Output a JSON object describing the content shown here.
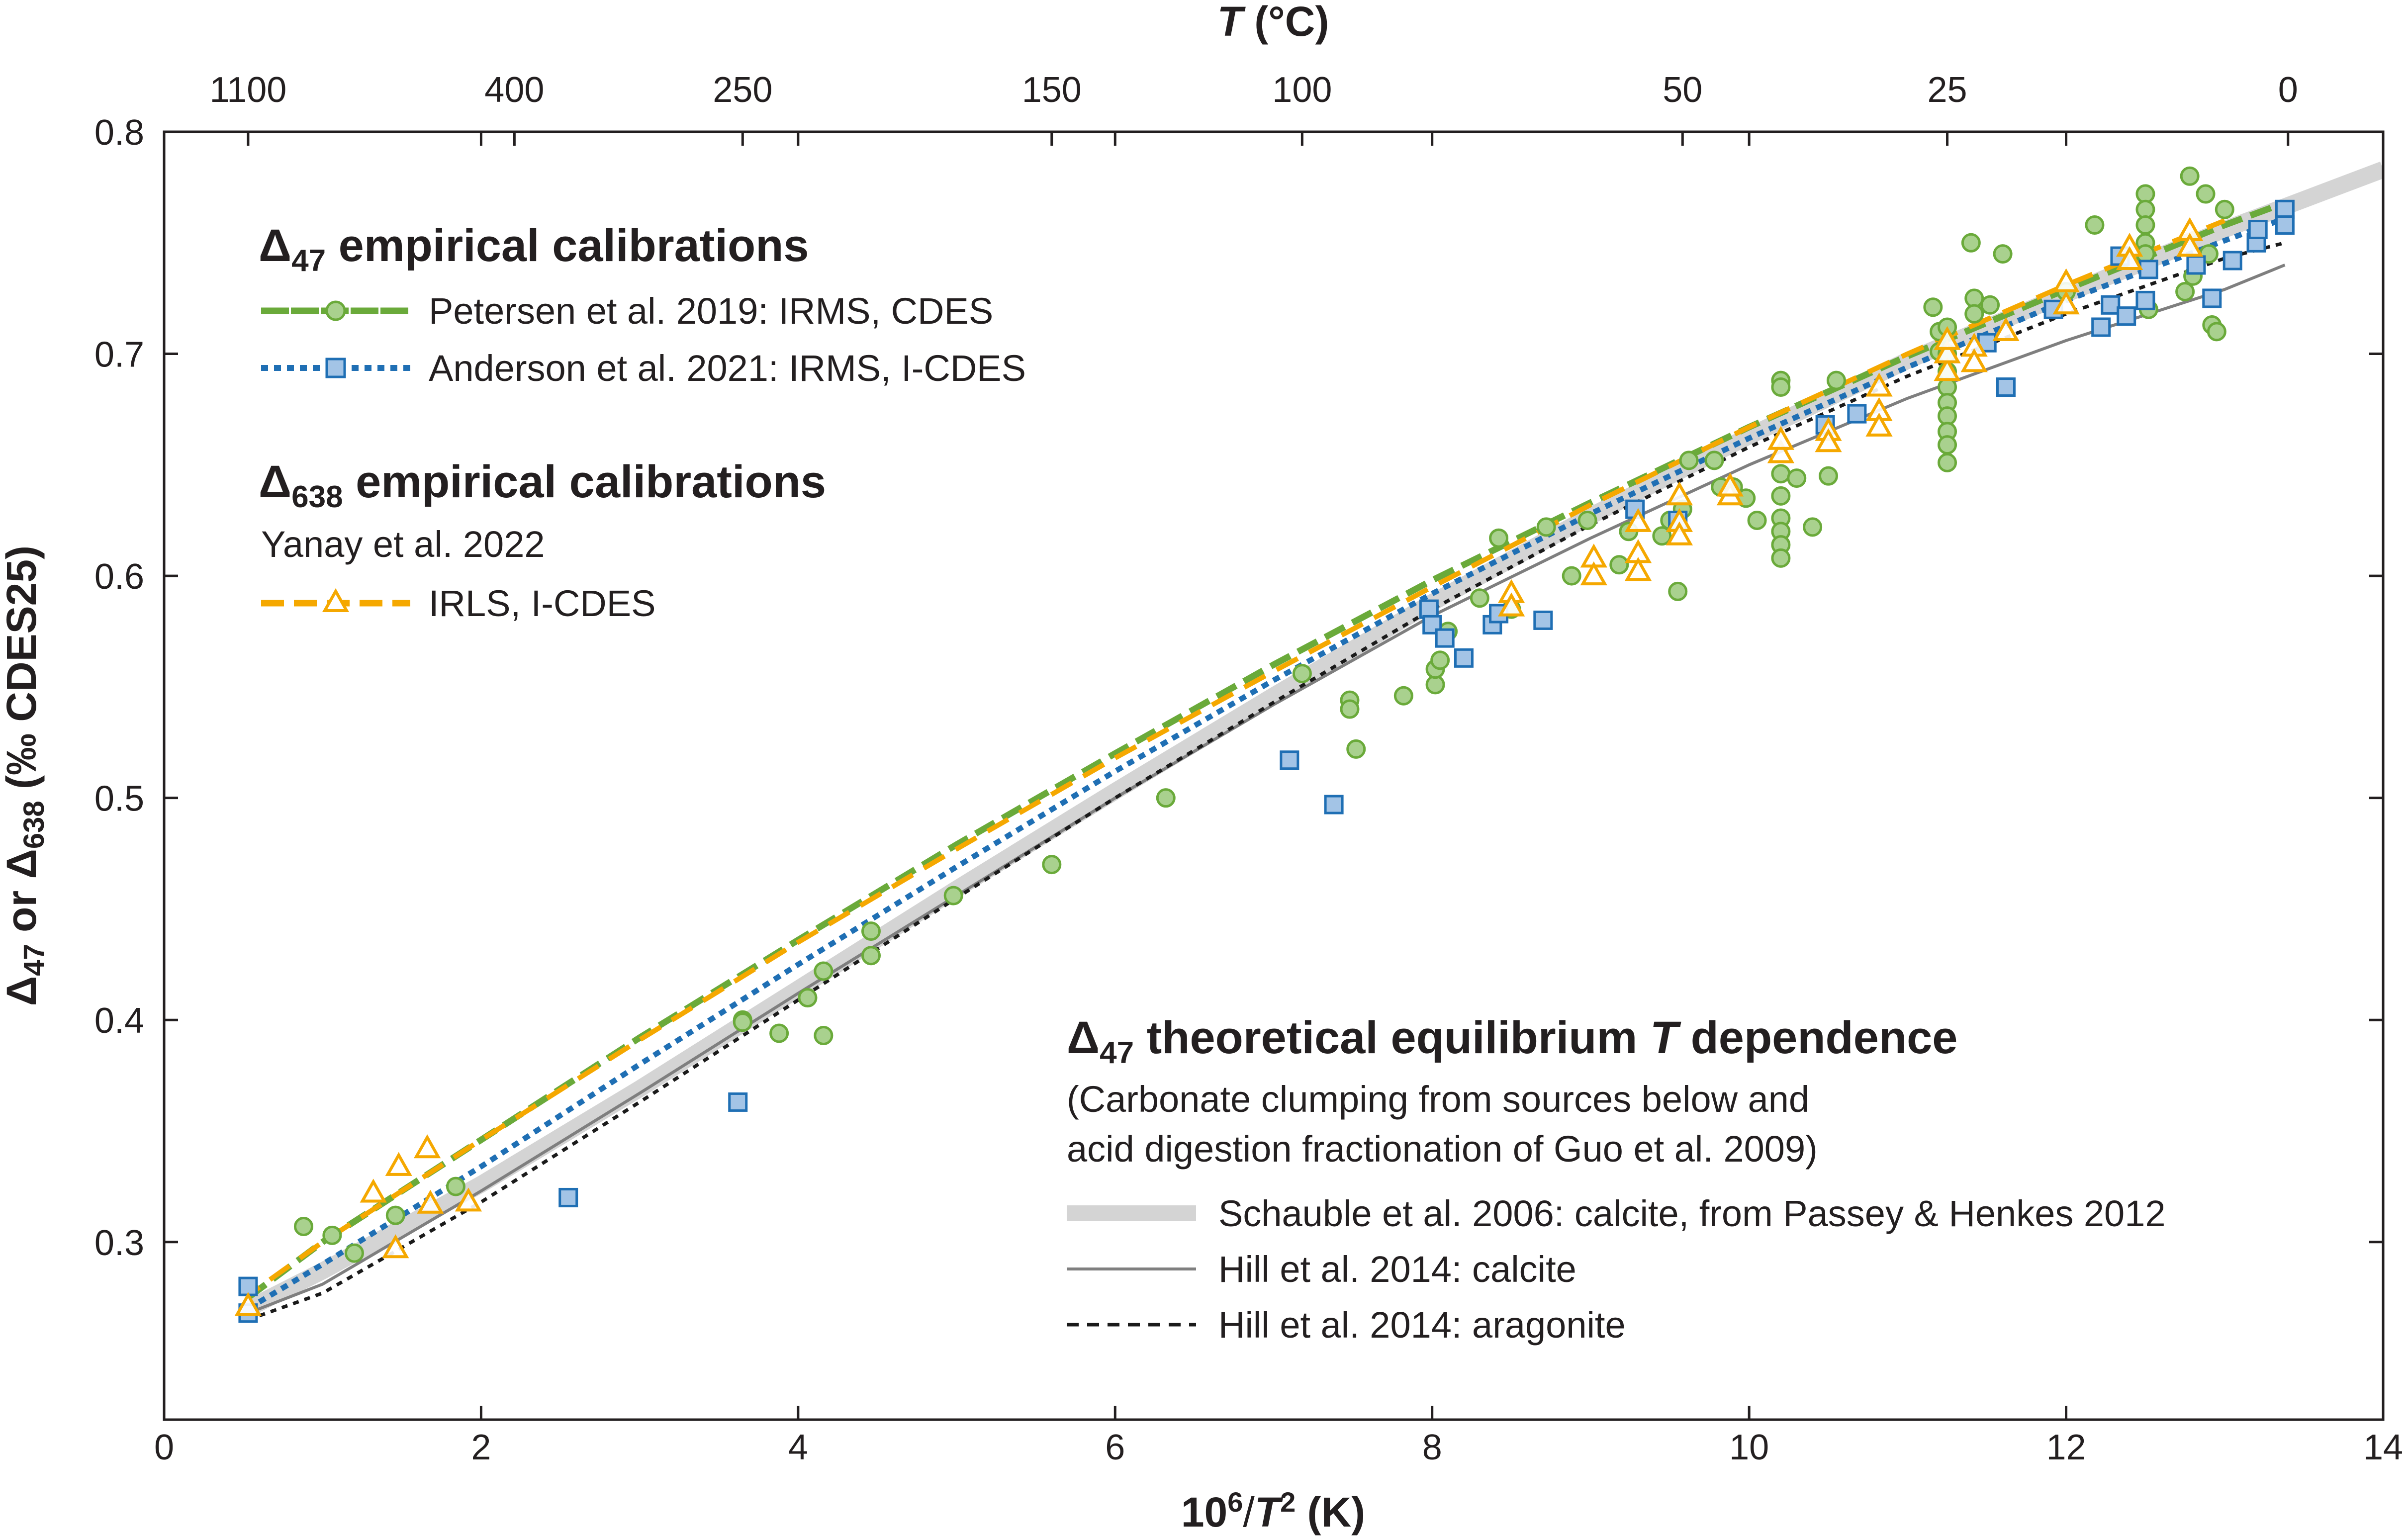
{
  "chart_data": {
    "type": "scatter",
    "title": "",
    "xlabel": "10⁶/T² (K)",
    "xlabel_parts": [
      "10",
      "6",
      "/",
      "T",
      "2",
      " (K)"
    ],
    "ylabel_parts": [
      "Δ",
      "47",
      " or  ",
      "Δ",
      "638",
      " (‰ CDES25)"
    ],
    "top_label_parts": [
      "T",
      " (°C)"
    ],
    "xlim": [
      0,
      14
    ],
    "ylim": [
      0.22,
      0.8
    ],
    "xticks": [
      0,
      2,
      4,
      6,
      8,
      10,
      12,
      14
    ],
    "yticks": [
      0.3,
      0.4,
      0.5,
      0.6,
      0.7,
      0.8
    ],
    "top_ticks": [
      {
        "label": "1100",
        "x": 0.53
      },
      {
        "label": "400",
        "x": 2.21
      },
      {
        "label": "250",
        "x": 3.65
      },
      {
        "label": "150",
        "x": 5.6
      },
      {
        "label": "100",
        "x": 7.18
      },
      {
        "label": "50",
        "x": 9.58
      },
      {
        "label": "25",
        "x": 11.25
      },
      {
        "label": "0",
        "x": 13.4
      }
    ],
    "legend": {
      "empirical_head": {
        "symbol": "Δ",
        "sub": "47",
        "rest": " empirical calibrations"
      },
      "petersen": "Petersen et al. 2019: IRMS, CDES",
      "anderson": "Anderson et al. 2021: IRMS, I-CDES",
      "d638_head": {
        "symbol": "Δ",
        "sub": "638",
        "rest": " empirical calibrations"
      },
      "yanay_ref": "Yanay et al. 2022",
      "yanay": "IRLS, I-CDES",
      "theory_head": {
        "symbol": "Δ",
        "sub": "47",
        "rest_a": " theoretical equilibrium ",
        "italic": "T",
        "rest_b": " dependence"
      },
      "theory_note_1": "(Carbonate clumping from sources below and",
      "theory_note_2": "acid digestion fractionation of Guo et al. 2009)",
      "schauble": "Schauble et al. 2006: calcite, from Passey & Henkes 2012",
      "hill_calcite": "Hill et al. 2014: calcite",
      "hill_aragonite": "Hill et al. 2014: aragonite"
    },
    "colors": {
      "petersen": "#6aaa3a",
      "petersen_fill": "#a9d18e",
      "anderson": "#1f6fb4",
      "anderson_fill": "#a3c4e6",
      "yanay": "#f5a800",
      "yanay_fill": "#ffffff",
      "schauble": "#d4d4d4",
      "hill_calcite": "#7f7f7f",
      "hill_aragonite": "#1a1a1a"
    },
    "series": [
      {
        "name": "Schauble et al. 2006: calcite",
        "kind": "line",
        "style": "thick",
        "x": [
          0.53,
          1,
          2,
          3,
          4,
          5,
          6,
          7,
          8,
          9,
          10,
          11,
          12,
          13,
          14
        ],
        "y": [
          0.27,
          0.287,
          0.326,
          0.369,
          0.414,
          0.459,
          0.503,
          0.546,
          0.588,
          0.627,
          0.663,
          0.697,
          0.727,
          0.756,
          0.783
        ]
      },
      {
        "name": "Hill et al. 2014: calcite",
        "kind": "line",
        "style": "solid",
        "x": [
          0.53,
          1,
          2,
          3,
          4,
          5,
          6,
          7,
          8,
          9,
          10,
          11,
          12,
          13,
          13.38
        ],
        "y": [
          0.268,
          0.281,
          0.323,
          0.367,
          0.412,
          0.456,
          0.5,
          0.542,
          0.582,
          0.617,
          0.65,
          0.68,
          0.706,
          0.729,
          0.74
        ]
      },
      {
        "name": "Hill et al. 2014: aragonite",
        "kind": "line",
        "style": "dotted",
        "x": [
          0.53,
          1,
          2,
          3,
          4,
          5,
          6,
          7,
          8,
          9,
          10,
          11,
          12,
          13,
          13.38
        ],
        "y": [
          0.265,
          0.277,
          0.318,
          0.363,
          0.409,
          0.455,
          0.5,
          0.543,
          0.585,
          0.623,
          0.658,
          0.69,
          0.718,
          0.743,
          0.75
        ]
      },
      {
        "name": "Anderson et al. 2021 fit",
        "kind": "line",
        "style": "dotted-blue",
        "x": [
          0.53,
          1,
          2,
          3,
          4,
          5,
          6,
          7,
          8,
          9,
          10,
          11,
          12,
          13,
          13.38
        ],
        "y": [
          0.27,
          0.29,
          0.334,
          0.38,
          0.425,
          0.469,
          0.512,
          0.553,
          0.592,
          0.628,
          0.662,
          0.694,
          0.724,
          0.751,
          0.761
        ]
      },
      {
        "name": "Petersen et al. 2019 fit",
        "kind": "line",
        "style": "dashed-green",
        "x": [
          0.53,
          1,
          2,
          3,
          4,
          5,
          6,
          7,
          8,
          9,
          10,
          11,
          12,
          13,
          13.38
        ],
        "y": [
          0.275,
          0.3,
          0.346,
          0.392,
          0.436,
          0.479,
          0.52,
          0.56,
          0.598,
          0.633,
          0.667,
          0.699,
          0.729,
          0.758,
          0.768
        ]
      },
      {
        "name": "Yanay et al. 2022 fit",
        "kind": "line",
        "style": "dashed-orange",
        "x": [
          0.53,
          1,
          2,
          3,
          4,
          5,
          6,
          7,
          8,
          9,
          10,
          11,
          12,
          13
        ],
        "y": [
          0.276,
          0.3,
          0.346,
          0.391,
          0.435,
          0.477,
          0.518,
          0.557,
          0.595,
          0.632,
          0.667,
          0.7,
          0.731,
          0.76
        ]
      },
      {
        "name": "Petersen et al. 2019: IRMS, CDES",
        "kind": "points",
        "marker": "circle",
        "points": [
          [
            0.88,
            0.307
          ],
          [
            1.06,
            0.303
          ],
          [
            1.2,
            0.295
          ],
          [
            1.46,
            0.312
          ],
          [
            1.84,
            0.325
          ],
          [
            3.65,
            0.4
          ],
          [
            3.65,
            0.399
          ],
          [
            3.88,
            0.394
          ],
          [
            4.06,
            0.41
          ],
          [
            4.16,
            0.422
          ],
          [
            4.16,
            0.393
          ],
          [
            4.46,
            0.44
          ],
          [
            4.46,
            0.429
          ],
          [
            4.98,
            0.456
          ],
          [
            5.6,
            0.47
          ],
          [
            6.32,
            0.5
          ],
          [
            7.18,
            0.556
          ],
          [
            7.48,
            0.544
          ],
          [
            7.48,
            0.54
          ],
          [
            7.52,
            0.522
          ],
          [
            7.82,
            0.546
          ],
          [
            8.02,
            0.551
          ],
          [
            8.02,
            0.558
          ],
          [
            8.05,
            0.562
          ],
          [
            8.1,
            0.575
          ],
          [
            8.3,
            0.59
          ],
          [
            8.42,
            0.617
          ],
          [
            8.5,
            0.585
          ],
          [
            8.72,
            0.622
          ],
          [
            8.88,
            0.6
          ],
          [
            8.98,
            0.625
          ],
          [
            9.18,
            0.605
          ],
          [
            9.24,
            0.62
          ],
          [
            9.45,
            0.618
          ],
          [
            9.5,
            0.625
          ],
          [
            9.55,
            0.593
          ],
          [
            9.58,
            0.63
          ],
          [
            9.62,
            0.652
          ],
          [
            9.78,
            0.652
          ],
          [
            9.82,
            0.64
          ],
          [
            9.9,
            0.64
          ],
          [
            9.98,
            0.635
          ],
          [
            10.05,
            0.625
          ],
          [
            10.2,
            0.688
          ],
          [
            10.2,
            0.685
          ],
          [
            10.2,
            0.646
          ],
          [
            10.2,
            0.636
          ],
          [
            10.2,
            0.626
          ],
          [
            10.2,
            0.62
          ],
          [
            10.2,
            0.614
          ],
          [
            10.2,
            0.608
          ],
          [
            10.3,
            0.644
          ],
          [
            10.4,
            0.622
          ],
          [
            10.5,
            0.645
          ],
          [
            10.55,
            0.688
          ],
          [
            11.16,
            0.721
          ],
          [
            11.2,
            0.701
          ],
          [
            11.2,
            0.71
          ],
          [
            11.25,
            0.712
          ],
          [
            11.25,
            0.7
          ],
          [
            11.25,
            0.692
          ],
          [
            11.25,
            0.685
          ],
          [
            11.25,
            0.678
          ],
          [
            11.25,
            0.672
          ],
          [
            11.25,
            0.665
          ],
          [
            11.25,
            0.659
          ],
          [
            11.25,
            0.651
          ],
          [
            11.4,
            0.75
          ],
          [
            11.42,
            0.725
          ],
          [
            11.42,
            0.718
          ],
          [
            11.52,
            0.722
          ],
          [
            11.6,
            0.745
          ],
          [
            12.0,
            0.728
          ],
          [
            12.18,
            0.758
          ],
          [
            12.5,
            0.772
          ],
          [
            12.5,
            0.765
          ],
          [
            12.5,
            0.758
          ],
          [
            12.5,
            0.75
          ],
          [
            12.5,
            0.745
          ],
          [
            12.52,
            0.72
          ],
          [
            12.78,
            0.78
          ],
          [
            12.8,
            0.735
          ],
          [
            12.88,
            0.772
          ],
          [
            12.9,
            0.745
          ],
          [
            12.92,
            0.725
          ],
          [
            12.92,
            0.713
          ],
          [
            12.95,
            0.71
          ],
          [
            13.0,
            0.765
          ],
          [
            12.75,
            0.728
          ]
        ]
      },
      {
        "name": "Anderson et al. 2021: IRMS, I-CDES",
        "kind": "points",
        "marker": "square",
        "points": [
          [
            0.53,
            0.28
          ],
          [
            0.53,
            0.268
          ],
          [
            2.55,
            0.32
          ],
          [
            3.62,
            0.363
          ],
          [
            7.1,
            0.517
          ],
          [
            7.38,
            0.497
          ],
          [
            7.98,
            0.585
          ],
          [
            8.0,
            0.578
          ],
          [
            8.08,
            0.572
          ],
          [
            8.2,
            0.563
          ],
          [
            8.38,
            0.578
          ],
          [
            8.42,
            0.583
          ],
          [
            8.7,
            0.58
          ],
          [
            9.28,
            0.63
          ],
          [
            9.55,
            0.625
          ],
          [
            10.48,
            0.668
          ],
          [
            10.68,
            0.673
          ],
          [
            11.5,
            0.705
          ],
          [
            11.62,
            0.685
          ],
          [
            11.92,
            0.72
          ],
          [
            12.22,
            0.712
          ],
          [
            12.28,
            0.722
          ],
          [
            12.34,
            0.744
          ],
          [
            12.38,
            0.717
          ],
          [
            12.5,
            0.724
          ],
          [
            12.52,
            0.738
          ],
          [
            12.82,
            0.74
          ],
          [
            12.92,
            0.725
          ],
          [
            13.05,
            0.742
          ],
          [
            13.2,
            0.75
          ],
          [
            13.21,
            0.756
          ],
          [
            13.38,
            0.765
          ],
          [
            13.38,
            0.758
          ]
        ]
      },
      {
        "name": "Yanay et al. 2022: IRLS, I-CDES",
        "kind": "points",
        "marker": "triangle",
        "points": [
          [
            0.53,
            0.271
          ],
          [
            1.32,
            0.322
          ],
          [
            1.46,
            0.297
          ],
          [
            1.48,
            0.334
          ],
          [
            1.66,
            0.342
          ],
          [
            1.68,
            0.317
          ],
          [
            1.92,
            0.318
          ],
          [
            8.5,
            0.592
          ],
          [
            8.5,
            0.586
          ],
          [
            9.02,
            0.608
          ],
          [
            9.02,
            0.6
          ],
          [
            9.3,
            0.61
          ],
          [
            9.3,
            0.602
          ],
          [
            9.3,
            0.624
          ],
          [
            9.56,
            0.636
          ],
          [
            9.56,
            0.624
          ],
          [
            9.56,
            0.618
          ],
          [
            9.88,
            0.636
          ],
          [
            9.88,
            0.64
          ],
          [
            10.2,
            0.655
          ],
          [
            10.2,
            0.661
          ],
          [
            10.5,
            0.665
          ],
          [
            10.5,
            0.66
          ],
          [
            10.82,
            0.685
          ],
          [
            10.82,
            0.674
          ],
          [
            10.82,
            0.667
          ],
          [
            11.25,
            0.692
          ],
          [
            11.25,
            0.7
          ],
          [
            11.25,
            0.706
          ],
          [
            11.42,
            0.703
          ],
          [
            11.42,
            0.696
          ],
          [
            11.62,
            0.71
          ],
          [
            12.0,
            0.722
          ],
          [
            12.0,
            0.732
          ],
          [
            12.4,
            0.748
          ],
          [
            12.4,
            0.742
          ],
          [
            12.78,
            0.755
          ],
          [
            12.78,
            0.748
          ]
        ]
      }
    ]
  }
}
